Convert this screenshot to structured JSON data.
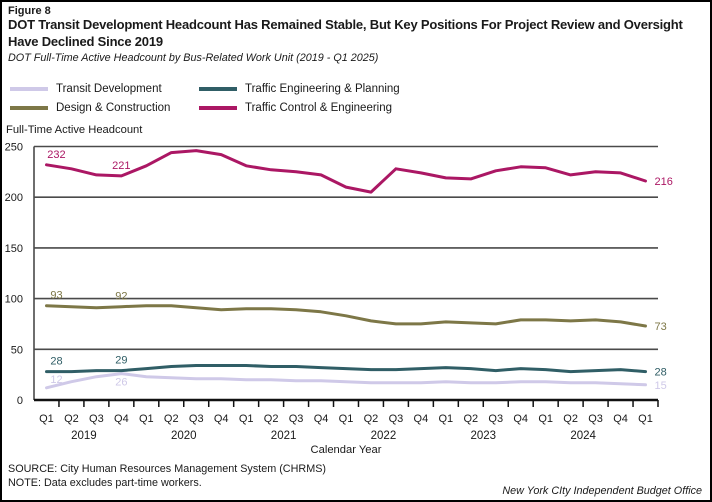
{
  "header": {
    "figure_label": "Figure 8",
    "title": "DOT Transit Development Headcount Has Remained Stable, But Key Positions For Project Review and Oversight Have Declined Since 2019",
    "subtitle": "DOT Full-Time Active Headcount by Bus-Related Work Unit (2019 - Q1 2025)"
  },
  "footer": {
    "source": "SOURCE: City Human Resources Management System (CHRMS)",
    "note": "NOTE: Data excludes part-time workers.",
    "credit": "New York CIty Independent Budget Office"
  },
  "chart_data": {
    "type": "line",
    "axis_title": "Full-Time Active Headcount",
    "xlabel": "Calendar Year",
    "ylim": [
      0,
      250
    ],
    "yticks": [
      0,
      50,
      100,
      150,
      200,
      250
    ],
    "grid": "horizontal",
    "legend_position": "top-left-two-columns",
    "quarters": [
      "Q1",
      "Q2",
      "Q3",
      "Q4",
      "Q1",
      "Q2",
      "Q3",
      "Q4",
      "Q1",
      "Q2",
      "Q3",
      "Q4",
      "Q1",
      "Q2",
      "Q3",
      "Q4",
      "Q1",
      "Q2",
      "Q3",
      "Q4",
      "Q1",
      "Q2",
      "Q3",
      "Q4",
      "Q1"
    ],
    "years": [
      "2019",
      "2020",
      "2021",
      "2022",
      "2023",
      "2024"
    ],
    "series": [
      {
        "name": "Transit Development",
        "color": "#cfc9e8",
        "values": [
          12,
          18,
          23,
          26,
          23,
          22,
          21,
          21,
          20,
          20,
          19,
          19,
          18,
          17,
          17,
          17,
          18,
          17,
          17,
          18,
          18,
          17,
          17,
          16,
          15
        ],
        "point_labels": {
          "0": 12,
          "3": 26,
          "24": 15
        }
      },
      {
        "name": "Design & Construction",
        "color": "#7d7747",
        "values": [
          93,
          92,
          91,
          92,
          93,
          93,
          91,
          89,
          90,
          90,
          89,
          87,
          83,
          78,
          75,
          75,
          77,
          76,
          75,
          79,
          79,
          78,
          79,
          77,
          73
        ],
        "point_labels": {
          "0": 93,
          "3": 92,
          "24": 73
        }
      },
      {
        "name": "Traffic Engineering & Planning",
        "color": "#305e66",
        "values": [
          28,
          28,
          29,
          29,
          31,
          33,
          34,
          34,
          34,
          33,
          33,
          32,
          31,
          30,
          30,
          31,
          32,
          31,
          29,
          31,
          30,
          28,
          29,
          30,
          28
        ],
        "point_labels": {
          "0": 28,
          "3": 29,
          "24": 28
        }
      },
      {
        "name": "Traffic Control & Engineering",
        "color": "#ab1764",
        "values": [
          232,
          228,
          222,
          221,
          231,
          244,
          246,
          242,
          231,
          227,
          225,
          222,
          210,
          205,
          228,
          224,
          219,
          218,
          226,
          230,
          229,
          222,
          225,
          224,
          216
        ],
        "point_labels": {
          "0": 232,
          "3": 221,
          "24": 216
        }
      }
    ]
  }
}
